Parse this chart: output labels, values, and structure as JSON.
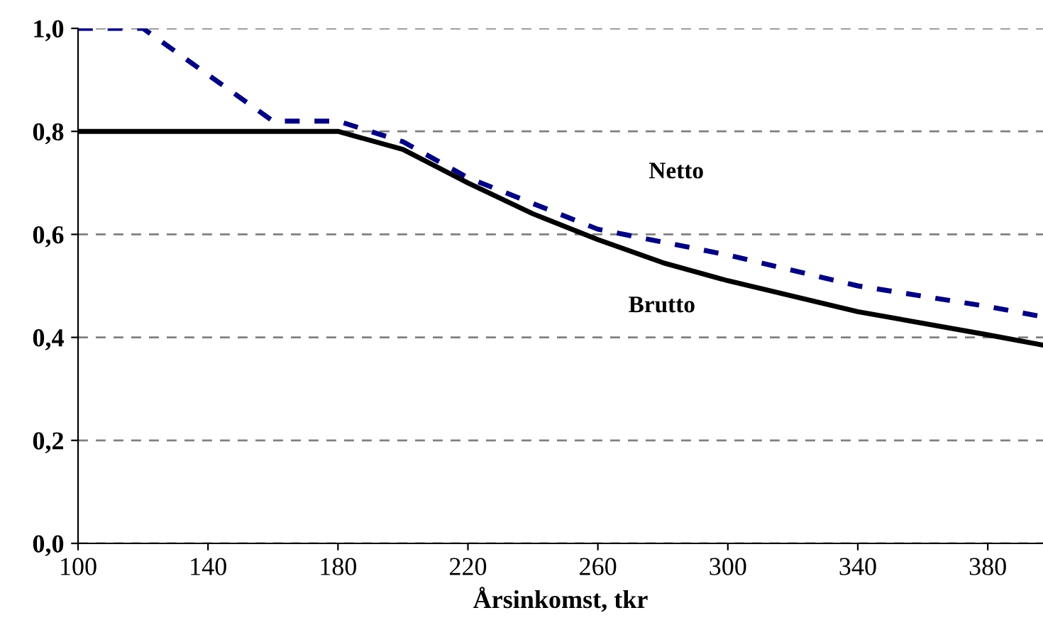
{
  "chart_data": {
    "type": "line",
    "xlabel": "Årsinkomst, tkr",
    "xlim": [
      100,
      397
    ],
    "xticks": [
      100,
      140,
      180,
      220,
      260,
      300,
      340,
      380
    ],
    "ylim": [
      0,
      1
    ],
    "yticks": [
      {
        "value": 0,
        "label": "0,0"
      },
      {
        "value": 0.2,
        "label": "0,2"
      },
      {
        "value": 0.4,
        "label": "0,4"
      },
      {
        "value": 0.6,
        "label": "0,6"
      },
      {
        "value": 0.8,
        "label": "0,8"
      },
      {
        "value": 1,
        "label": "1,0"
      }
    ],
    "grid": "y",
    "legend": false,
    "series": [
      {
        "name": "Netto",
        "color": "#000080",
        "line_style": "dashed",
        "x": [
          100,
          120,
          160,
          180,
          200,
          220,
          240,
          260,
          300,
          340,
          380,
          397
        ],
        "values": [
          1.0,
          1.0,
          0.82,
          0.82,
          0.78,
          0.71,
          0.66,
          0.61,
          0.56,
          0.5,
          0.46,
          0.44
        ]
      },
      {
        "name": "Brutto",
        "color": "#000000",
        "line_style": "solid",
        "x": [
          100,
          180,
          200,
          220,
          240,
          260,
          280,
          300,
          340,
          380,
          397
        ],
        "values": [
          0.8,
          0.8,
          0.765,
          0.7,
          0.64,
          0.59,
          0.545,
          0.51,
          0.45,
          0.405,
          0.385
        ]
      }
    ]
  }
}
